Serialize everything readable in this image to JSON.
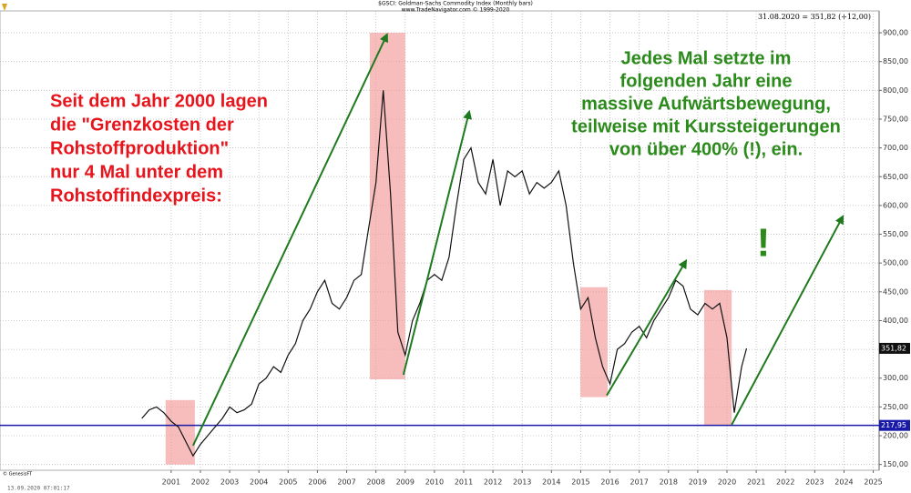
{
  "chart_data": {
    "type": "line",
    "title": "$GSCI: Goldman-Sachs Commodity Index  (Monthly bars)",
    "subtitle": "www.TradeNavigator.com © 1999-2020",
    "quote": "31.08.2020 = 351,82 (+12,00)",
    "source": "© GenesisFT",
    "timestamp": "13.09.2020 07:01:17",
    "x": [
      2000.0,
      2000.25,
      2000.5,
      2000.75,
      2001.0,
      2001.25,
      2001.5,
      2001.75,
      2002.0,
      2002.25,
      2002.5,
      2002.75,
      2003.0,
      2003.25,
      2003.5,
      2003.75,
      2004.0,
      2004.25,
      2004.5,
      2004.75,
      2005.0,
      2005.25,
      2005.5,
      2005.75,
      2006.0,
      2006.25,
      2006.5,
      2006.75,
      2007.0,
      2007.25,
      2007.5,
      2007.75,
      2008.0,
      2008.25,
      2008.5,
      2008.75,
      2009.0,
      2009.25,
      2009.5,
      2009.75,
      2010.0,
      2010.25,
      2010.5,
      2010.75,
      2011.0,
      2011.25,
      2011.5,
      2011.75,
      2012.0,
      2012.25,
      2012.5,
      2012.75,
      2013.0,
      2013.25,
      2013.5,
      2013.75,
      2014.0,
      2014.25,
      2014.5,
      2014.75,
      2015.0,
      2015.25,
      2015.5,
      2015.75,
      2016.0,
      2016.25,
      2016.5,
      2016.75,
      2017.0,
      2017.25,
      2017.5,
      2017.75,
      2018.0,
      2018.25,
      2018.5,
      2018.75,
      2019.0,
      2019.25,
      2019.5,
      2019.75,
      2020.0,
      2020.25,
      2020.5,
      2020.67
    ],
    "series": [
      {
        "name": "$GSCI",
        "color": "#111111",
        "values": [
          230,
          245,
          250,
          240,
          225,
          215,
          190,
          165,
          185,
          200,
          215,
          230,
          250,
          240,
          245,
          255,
          290,
          300,
          320,
          310,
          340,
          360,
          400,
          420,
          450,
          470,
          430,
          420,
          440,
          470,
          480,
          560,
          640,
          800,
          620,
          380,
          340,
          400,
          430,
          470,
          480,
          470,
          510,
          600,
          680,
          700,
          640,
          620,
          680,
          600,
          660,
          650,
          660,
          620,
          640,
          630,
          640,
          660,
          600,
          500,
          420,
          440,
          370,
          320,
          290,
          350,
          360,
          380,
          390,
          370,
          400,
          420,
          440,
          470,
          460,
          420,
          410,
          430,
          420,
          430,
          370,
          240,
          320,
          351.82
        ]
      }
    ],
    "xlim": [
      1995.15,
      2025.2
    ],
    "ylim": [
      140,
      938
    ],
    "xticks": [
      2001,
      2002,
      2003,
      2004,
      2005,
      2006,
      2007,
      2008,
      2009,
      2010,
      2011,
      2012,
      2013,
      2014,
      2015,
      2016,
      2017,
      2018,
      2019,
      2020,
      2021,
      2022,
      2023,
      2024,
      2025
    ],
    "yticks": [
      {
        "value": 150,
        "label": "150,00"
      },
      {
        "value": 200,
        "label": "200,00"
      },
      {
        "value": 250,
        "label": "250,00"
      },
      {
        "value": 300,
        "label": "300,00"
      },
      {
        "value": 350,
        "label": "350,00"
      },
      {
        "value": 400,
        "label": "400,00"
      },
      {
        "value": 450,
        "label": "450,00"
      },
      {
        "value": 500,
        "label": "500,00"
      },
      {
        "value": 550,
        "label": "550,00"
      },
      {
        "value": 600,
        "label": "600,00"
      },
      {
        "value": 650,
        "label": "650,00"
      },
      {
        "value": 700,
        "label": "700,00"
      },
      {
        "value": 750,
        "label": "750,00"
      },
      {
        "value": 800,
        "label": "800,00"
      },
      {
        "value": 850,
        "label": "850,00"
      },
      {
        "value": 900,
        "label": "900,00"
      }
    ],
    "grid": true,
    "hline": {
      "value": 217.95,
      "label": "217,95",
      "color": "#1a1aa8"
    },
    "last_price": {
      "value": 351.82,
      "label": "351,82"
    },
    "zones": {
      "color": "#f29a9a",
      "items": [
        {
          "x": [
            2000.81,
            2001.81
          ],
          "y": [
            150,
            262
          ]
        },
        {
          "x": [
            2007.79,
            2009.0
          ],
          "y": [
            298,
            900
          ]
        },
        {
          "x": [
            2014.99,
            2015.92
          ],
          "y": [
            267,
            458
          ]
        },
        {
          "x": [
            2019.22,
            2020.16
          ],
          "y": [
            219,
            453
          ]
        }
      ]
    },
    "arrows": {
      "color": "#1f7a1f",
      "items": [
        {
          "x": [
            2001.75,
            2008.38
          ],
          "y": [
            183,
            897
          ]
        },
        {
          "x": [
            2008.94,
            2011.19
          ],
          "y": [
            306,
            763
          ]
        },
        {
          "x": [
            2015.89,
            2018.6
          ],
          "y": [
            270,
            504
          ]
        },
        {
          "x": [
            2020.16,
            2023.96
          ],
          "y": [
            219,
            581
          ]
        }
      ]
    },
    "annotation_left": [
      "Seit dem Jahr 2000 lagen",
      "die \"Grenzkosten der",
      "Rohstoffproduktion\"",
      "nur 4 Mal unter dem",
      "Rohstoffindexpreis:"
    ],
    "annotation_right": [
      "Jedes Mal setzte im",
      "folgenden Jahr eine",
      "massive Aufwärtsbewegung,",
      "teilweise mit Kurssteigerungen",
      "von über 400% (!), ein."
    ],
    "exclamation": "!"
  }
}
